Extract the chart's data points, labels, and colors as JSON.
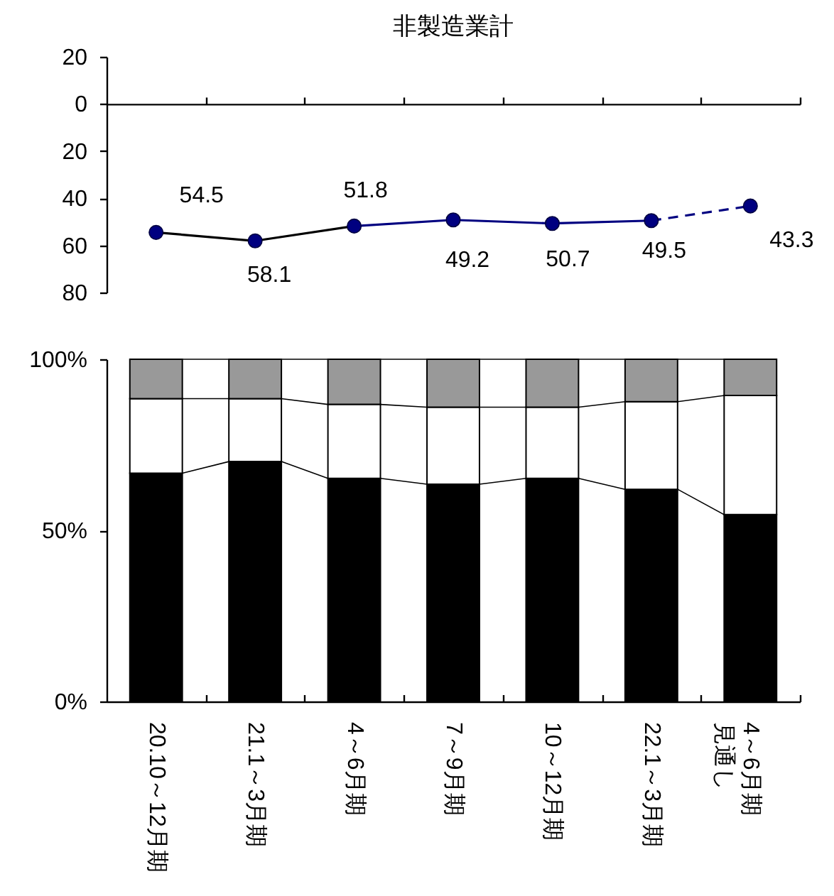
{
  "chart_data": [
    {
      "type": "line",
      "title": "非製造業計",
      "categories": [
        null,
        null,
        null,
        null,
        null,
        null,
        null
      ],
      "ylim": [
        80,
        -20
      ],
      "yticks": [
        {
          "value": -20,
          "label": "20"
        },
        0,
        20,
        40,
        60,
        80
      ],
      "tick_labels": "y",
      "series": [
        {
          "type": "line",
          "color": "#000000",
          "marker": "none",
          "values": [
            54.5,
            58.1,
            51.8,
            null,
            null,
            null,
            null
          ]
        },
        {
          "type": "line",
          "color": "#000080",
          "marker": "none",
          "values": [
            null,
            null,
            51.8,
            49.2,
            50.7,
            49.5,
            null
          ]
        },
        {
          "type": "line",
          "color": "#000080",
          "marker": "none",
          "line_style": "dashed",
          "values": [
            null,
            null,
            null,
            null,
            null,
            49.5,
            43.3
          ]
        },
        {
          "type": "scatter",
          "color": "#000080",
          "marker": "circle",
          "values": [
            54.5,
            58.1,
            51.8,
            49.2,
            50.7,
            49.5,
            43.3
          ],
          "value_labels": [
            "54.5",
            "58.1",
            "51.8",
            "49.2",
            "50.7",
            "49.5",
            "43.3"
          ]
        }
      ]
    },
    {
      "type": "bar",
      "stacked": true,
      "categories": [
        "20.10～12月期",
        "21.1～3月期",
        "4～6月期",
        "7～9月期",
        "10～12月期",
        "22.1～3月期",
        "4～6月期見通し"
      ],
      "ylim": [
        0,
        100
      ],
      "yticks": [
        {
          "value": 0,
          "label": "0%"
        },
        {
          "value": 50,
          "label": "50%"
        },
        {
          "value": 100,
          "label": "100%"
        }
      ],
      "series": [
        {
          "color": "#000000",
          "values": [
            66.7,
            70.1,
            65.2,
            63.5,
            65.2,
            62.0,
            54.6
          ]
        },
        {
          "color": "#ffffff",
          "values": [
            21.8,
            18.4,
            21.6,
            22.5,
            20.8,
            25.6,
            34.8
          ]
        },
        {
          "color": "#999999",
          "values": [
            11.5,
            11.5,
            13.2,
            14.0,
            14.0,
            12.4,
            10.6
          ]
        }
      ]
    }
  ]
}
